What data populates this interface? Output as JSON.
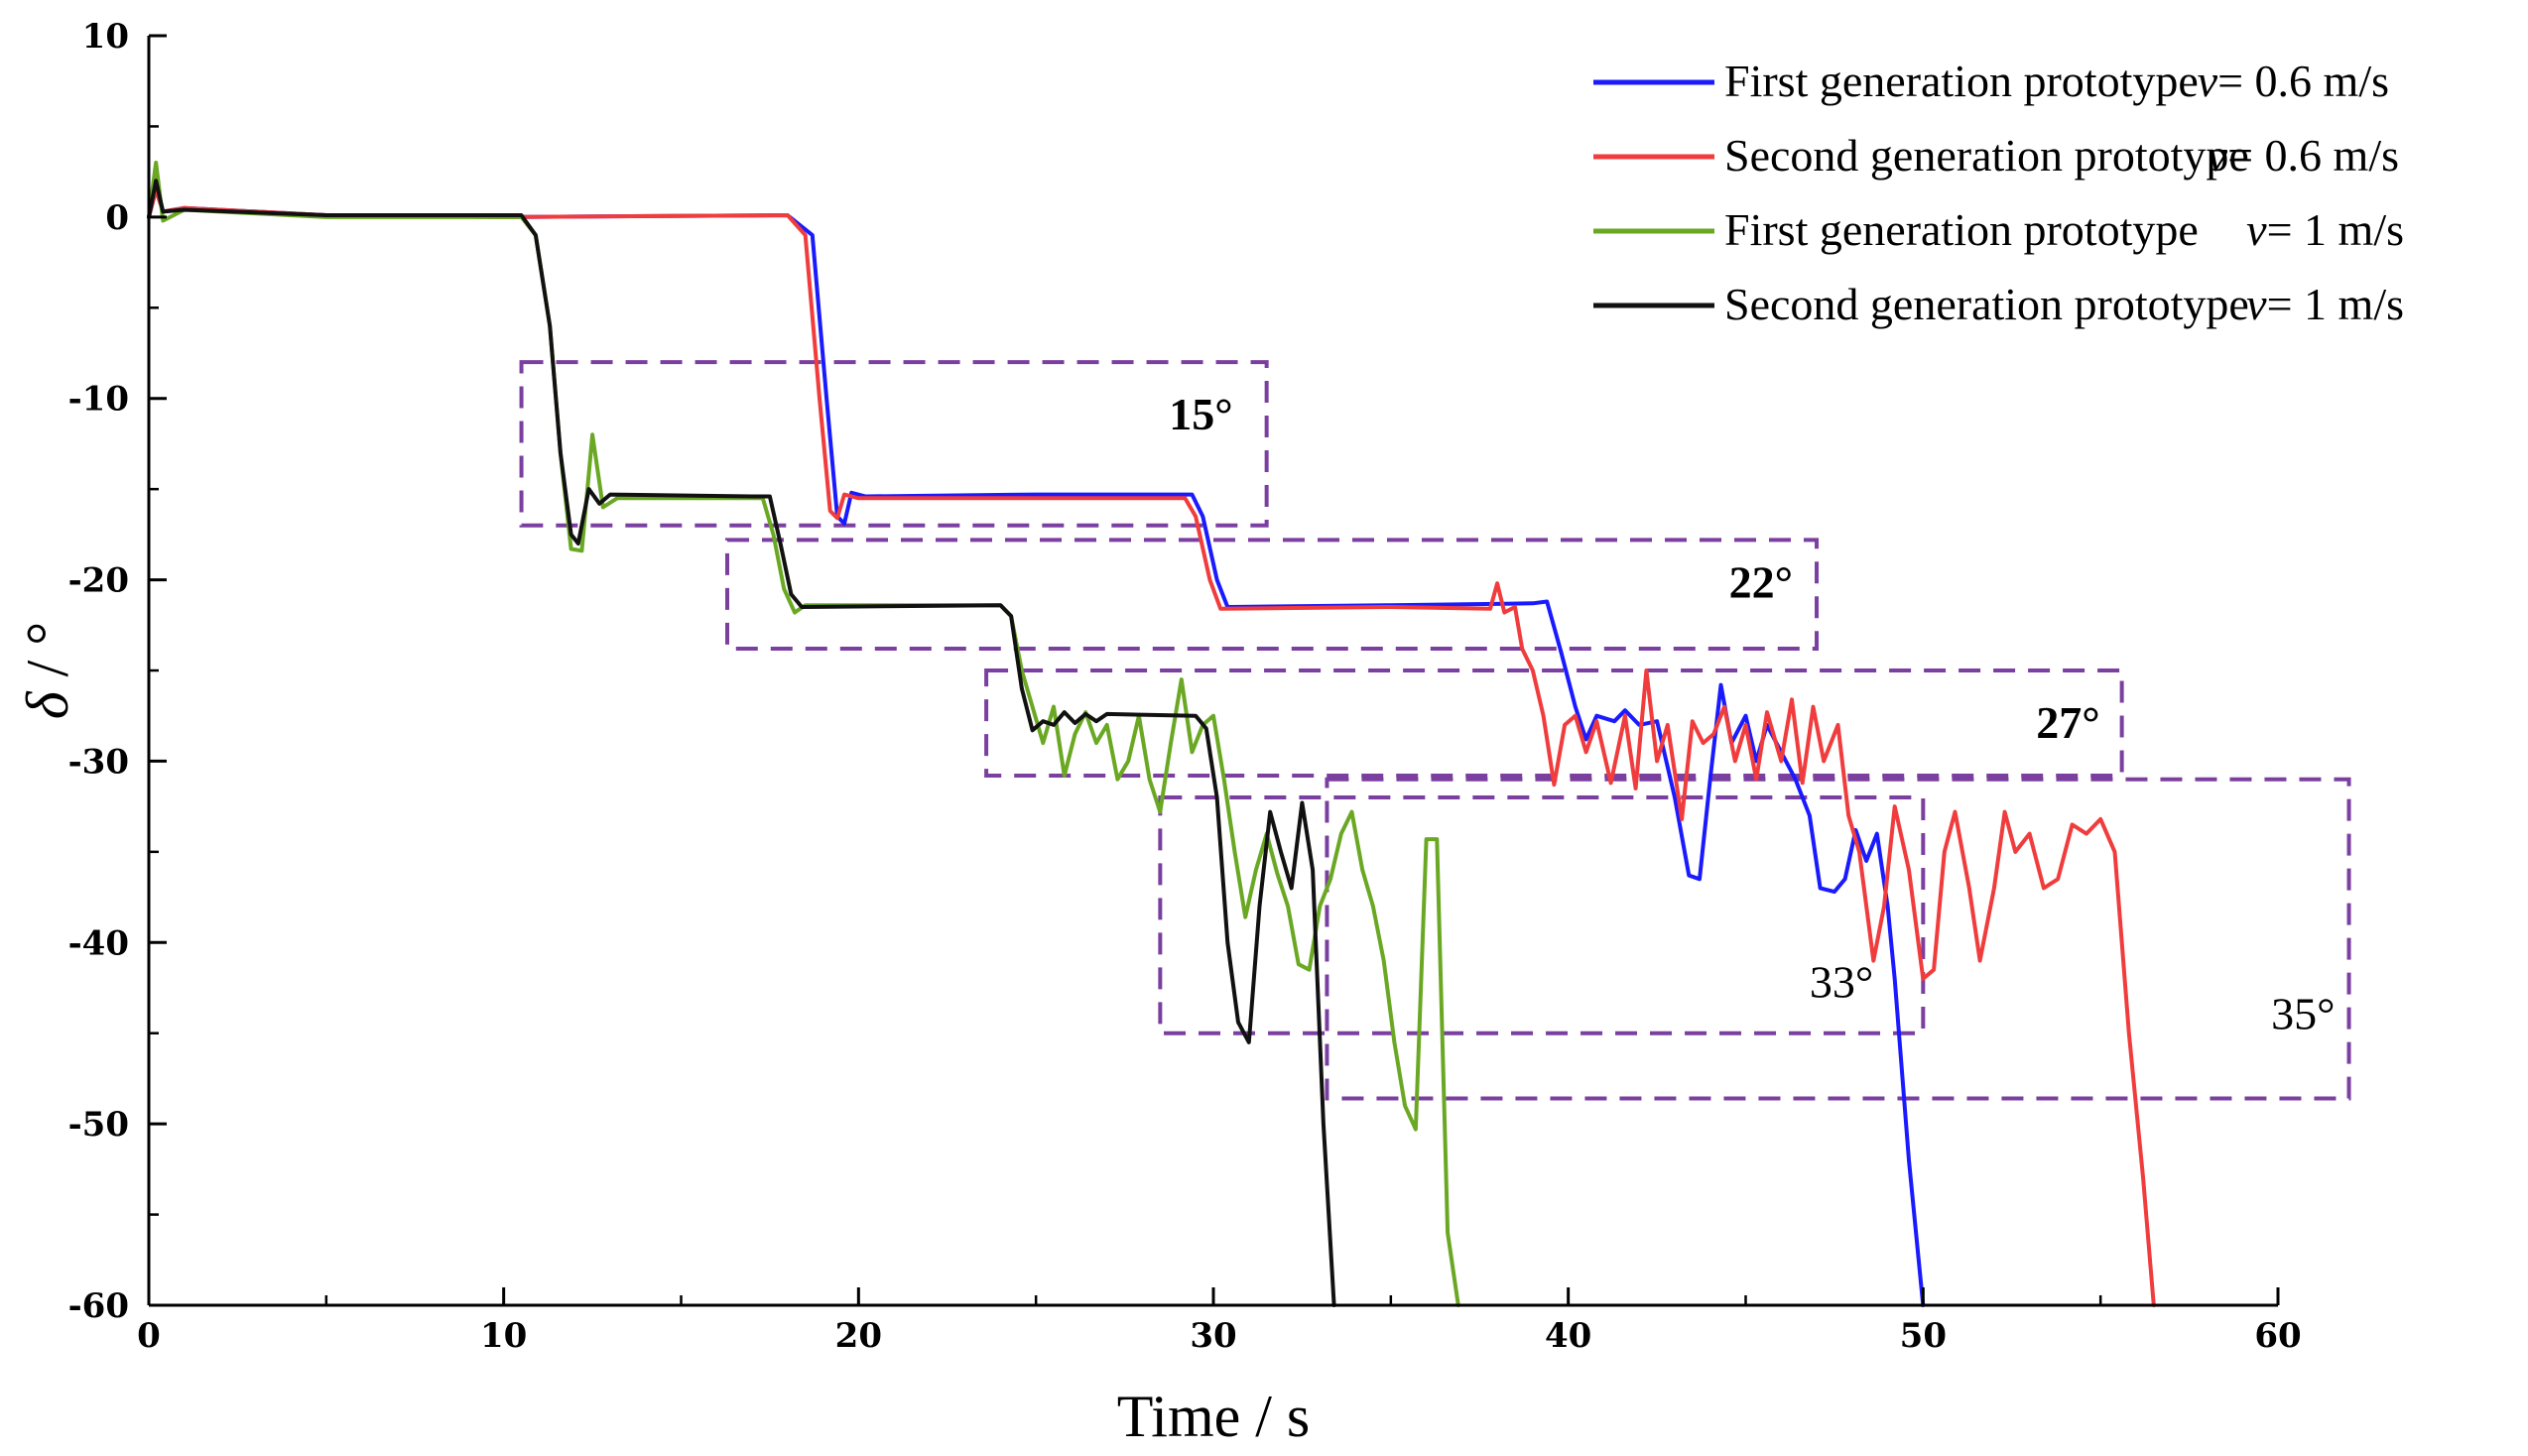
{
  "chart_data": {
    "type": "line",
    "xlabel": "Time / s",
    "ylabel_symbol": "δ",
    "ylabel_unit": " / °",
    "xlim": [
      0,
      60
    ],
    "ylim": [
      -60,
      10
    ],
    "x_ticks": [
      0,
      10,
      20,
      30,
      40,
      50,
      60
    ],
    "y_ticks": [
      10,
      0,
      -10,
      -20,
      -30,
      -40,
      -50,
      -60
    ],
    "y_tick_labels": [
      "10",
      "0",
      "-10",
      "-20",
      "-30",
      "-40",
      "-50",
      "-60"
    ],
    "grid": false,
    "legend_position": "top-right",
    "series": [
      {
        "name": "First generation prototype",
        "speed_label": "v",
        "speed_value": "= 0.6 m/s",
        "color": "#1a1aff",
        "points": [
          [
            0,
            0
          ],
          [
            0.2,
            1.5
          ],
          [
            0.4,
            0.3
          ],
          [
            1,
            0.5
          ],
          [
            5,
            0.1
          ],
          [
            10,
            0
          ],
          [
            18,
            0.1
          ],
          [
            18.7,
            -1
          ],
          [
            19.1,
            -10
          ],
          [
            19.4,
            -16.5
          ],
          [
            19.6,
            -16.9
          ],
          [
            19.8,
            -15.2
          ],
          [
            20.2,
            -15.4
          ],
          [
            25,
            -15.3
          ],
          [
            29.4,
            -15.3
          ],
          [
            29.7,
            -16.5
          ],
          [
            30.1,
            -20
          ],
          [
            30.4,
            -21.5
          ],
          [
            35,
            -21.4
          ],
          [
            39,
            -21.3
          ],
          [
            39.4,
            -21.2
          ],
          [
            39.8,
            -24
          ],
          [
            40.2,
            -27
          ],
          [
            40.5,
            -28.8
          ],
          [
            40.8,
            -27.5
          ],
          [
            41.3,
            -27.8
          ],
          [
            41.6,
            -27.2
          ],
          [
            42,
            -28
          ],
          [
            42.5,
            -27.8
          ],
          [
            43,
            -32
          ],
          [
            43.4,
            -36.3
          ],
          [
            43.7,
            -36.5
          ],
          [
            44,
            -31
          ],
          [
            44.3,
            -25.8
          ],
          [
            44.6,
            -29
          ],
          [
            45,
            -27.5
          ],
          [
            45.3,
            -30
          ],
          [
            45.6,
            -28
          ],
          [
            46,
            -29.5
          ],
          [
            46.4,
            -31
          ],
          [
            46.8,
            -33
          ],
          [
            47.1,
            -37
          ],
          [
            47.5,
            -37.2
          ],
          [
            47.8,
            -36.5
          ],
          [
            48.1,
            -33.8
          ],
          [
            48.4,
            -35.5
          ],
          [
            48.7,
            -34
          ],
          [
            49,
            -38
          ],
          [
            49.2,
            -42
          ],
          [
            49.6,
            -52
          ],
          [
            50,
            -60
          ]
        ]
      },
      {
        "name": "Second generation prototype",
        "speed_label": "v",
        "speed_value": "= 0.6 m/s",
        "color": "#f03c3c",
        "points": [
          [
            0,
            0
          ],
          [
            0.2,
            1.5
          ],
          [
            0.4,
            0.3
          ],
          [
            1,
            0.5
          ],
          [
            5,
            0.1
          ],
          [
            10,
            0
          ],
          [
            18,
            0.1
          ],
          [
            18.5,
            -1
          ],
          [
            18.9,
            -10
          ],
          [
            19.2,
            -16.2
          ],
          [
            19.4,
            -16.6
          ],
          [
            19.6,
            -15.3
          ],
          [
            20,
            -15.5
          ],
          [
            25,
            -15.5
          ],
          [
            29.2,
            -15.5
          ],
          [
            29.5,
            -16.5
          ],
          [
            29.9,
            -20
          ],
          [
            30.2,
            -21.6
          ],
          [
            35,
            -21.5
          ],
          [
            37.8,
            -21.6
          ],
          [
            38,
            -20.2
          ],
          [
            38.2,
            -21.8
          ],
          [
            38.5,
            -21.5
          ],
          [
            38.7,
            -23.8
          ],
          [
            39,
            -25
          ],
          [
            39.3,
            -27.5
          ],
          [
            39.6,
            -31.3
          ],
          [
            39.9,
            -28
          ],
          [
            40.2,
            -27.5
          ],
          [
            40.5,
            -29.5
          ],
          [
            40.8,
            -27.8
          ],
          [
            41.2,
            -31.2
          ],
          [
            41.6,
            -27.5
          ],
          [
            41.9,
            -31.5
          ],
          [
            42.2,
            -25
          ],
          [
            42.5,
            -30
          ],
          [
            42.8,
            -28
          ],
          [
            43.2,
            -33.2
          ],
          [
            43.5,
            -27.8
          ],
          [
            43.8,
            -29
          ],
          [
            44.1,
            -28.5
          ],
          [
            44.4,
            -27
          ],
          [
            44.7,
            -30
          ],
          [
            45,
            -28
          ],
          [
            45.3,
            -31
          ],
          [
            45.6,
            -27.3
          ],
          [
            46,
            -30
          ],
          [
            46.3,
            -26.6
          ],
          [
            46.6,
            -31.2
          ],
          [
            46.9,
            -27
          ],
          [
            47.2,
            -30
          ],
          [
            47.6,
            -28
          ],
          [
            47.9,
            -33
          ],
          [
            48.2,
            -35
          ],
          [
            48.6,
            -41
          ],
          [
            48.9,
            -38
          ],
          [
            49.2,
            -32.5
          ],
          [
            49.6,
            -36
          ],
          [
            50,
            -42
          ],
          [
            50.3,
            -41.5
          ],
          [
            50.6,
            -35
          ],
          [
            50.9,
            -32.8
          ],
          [
            51.3,
            -37
          ],
          [
            51.6,
            -41
          ],
          [
            52,
            -37
          ],
          [
            52.3,
            -32.8
          ],
          [
            52.6,
            -35
          ],
          [
            53,
            -34
          ],
          [
            53.4,
            -37
          ],
          [
            53.8,
            -36.5
          ],
          [
            54.2,
            -33.5
          ],
          [
            54.6,
            -34
          ],
          [
            55,
            -33.2
          ],
          [
            55.4,
            -35
          ],
          [
            55.8,
            -45
          ],
          [
            56.2,
            -53
          ],
          [
            56.5,
            -60
          ]
        ]
      },
      {
        "name": "First generation prototype",
        "speed_label": "v",
        "speed_value": "= 1 m/s",
        "color": "#6aa824",
        "points": [
          [
            0,
            0
          ],
          [
            0.2,
            3
          ],
          [
            0.4,
            -0.2
          ],
          [
            1,
            0.4
          ],
          [
            5,
            0
          ],
          [
            10.5,
            0
          ],
          [
            10.9,
            -1
          ],
          [
            11.3,
            -6
          ],
          [
            11.6,
            -13
          ],
          [
            11.9,
            -18.3
          ],
          [
            12.2,
            -18.4
          ],
          [
            12.5,
            -12
          ],
          [
            12.8,
            -16
          ],
          [
            13.2,
            -15.5
          ],
          [
            17,
            -15.5
          ],
          [
            17.3,
            -15.5
          ],
          [
            17.6,
            -17.5
          ],
          [
            17.9,
            -20.5
          ],
          [
            18.2,
            -21.8
          ],
          [
            18.5,
            -21.4
          ],
          [
            24,
            -21.4
          ],
          [
            24.3,
            -22
          ],
          [
            24.6,
            -25
          ],
          [
            24.9,
            -27
          ],
          [
            25.2,
            -29
          ],
          [
            25.5,
            -27
          ],
          [
            25.8,
            -30.8
          ],
          [
            26.1,
            -28.5
          ],
          [
            26.4,
            -27.3
          ],
          [
            26.7,
            -29
          ],
          [
            27,
            -28
          ],
          [
            27.3,
            -31
          ],
          [
            27.6,
            -30
          ],
          [
            27.9,
            -27.5
          ],
          [
            28.2,
            -31
          ],
          [
            28.5,
            -32.8
          ],
          [
            28.8,
            -29
          ],
          [
            29.1,
            -25.5
          ],
          [
            29.4,
            -29.5
          ],
          [
            29.7,
            -28
          ],
          [
            30,
            -27.5
          ],
          [
            30.3,
            -31
          ],
          [
            30.6,
            -35
          ],
          [
            30.9,
            -38.6
          ],
          [
            31.2,
            -36
          ],
          [
            31.5,
            -34
          ],
          [
            31.8,
            -36.2
          ],
          [
            32.1,
            -38
          ],
          [
            32.4,
            -41.2
          ],
          [
            32.7,
            -41.5
          ],
          [
            33,
            -38
          ],
          [
            33.3,
            -36.5
          ],
          [
            33.6,
            -34
          ],
          [
            33.9,
            -32.8
          ],
          [
            34.2,
            -36
          ],
          [
            34.5,
            -38
          ],
          [
            34.8,
            -41
          ],
          [
            35.1,
            -45.5
          ],
          [
            35.4,
            -49
          ],
          [
            35.7,
            -50.3
          ],
          [
            36,
            -34.3
          ],
          [
            36.3,
            -34.3
          ],
          [
            36.6,
            -56
          ],
          [
            36.9,
            -60
          ]
        ]
      },
      {
        "name": "Second generation prototype",
        "speed_label": "v",
        "speed_value": "= 1 m/s",
        "color": "#111111",
        "points": [
          [
            0,
            0
          ],
          [
            0.2,
            2
          ],
          [
            0.4,
            0.3
          ],
          [
            1,
            0.4
          ],
          [
            5,
            0.1
          ],
          [
            10.5,
            0.1
          ],
          [
            10.9,
            -1
          ],
          [
            11.3,
            -6
          ],
          [
            11.6,
            -13
          ],
          [
            11.9,
            -17.5
          ],
          [
            12.1,
            -18
          ],
          [
            12.4,
            -15
          ],
          [
            12.7,
            -15.8
          ],
          [
            13,
            -15.3
          ],
          [
            17,
            -15.4
          ],
          [
            17.5,
            -15.4
          ],
          [
            17.8,
            -18
          ],
          [
            18.1,
            -20.8
          ],
          [
            18.4,
            -21.5
          ],
          [
            24,
            -21.4
          ],
          [
            24.3,
            -22
          ],
          [
            24.6,
            -26
          ],
          [
            24.9,
            -28.3
          ],
          [
            25.2,
            -27.8
          ],
          [
            25.5,
            -28
          ],
          [
            25.8,
            -27.3
          ],
          [
            26.1,
            -27.9
          ],
          [
            26.4,
            -27.4
          ],
          [
            26.7,
            -27.8
          ],
          [
            27,
            -27.4
          ],
          [
            29.5,
            -27.5
          ],
          [
            29.8,
            -28.2
          ],
          [
            30.1,
            -32
          ],
          [
            30.4,
            -40
          ],
          [
            30.7,
            -44.4
          ],
          [
            31,
            -45.5
          ],
          [
            31.3,
            -38
          ],
          [
            31.6,
            -32.8
          ],
          [
            31.9,
            -35
          ],
          [
            32.2,
            -37
          ],
          [
            32.5,
            -32.3
          ],
          [
            32.8,
            -36
          ],
          [
            33.1,
            -50
          ],
          [
            33.4,
            -60
          ]
        ]
      }
    ],
    "annotations": [
      "15°",
      "22°",
      "27°",
      "33°",
      "35°"
    ],
    "annotation_boxes": [
      {
        "label": "15°",
        "x": [
          10.5,
          31.5
        ],
        "y": [
          -17,
          -8
        ]
      },
      {
        "label": "22°",
        "x": [
          16.3,
          47
        ],
        "y": [
          -23.8,
          -17.8
        ]
      },
      {
        "label": "27°",
        "x": [
          23.6,
          55.6
        ],
        "y": [
          -30.8,
          -25
        ]
      },
      {
        "label": "33°",
        "x": [
          28.5,
          50
        ],
        "y": [
          -45,
          -32
        ]
      },
      {
        "label": "35°",
        "x": [
          33.2,
          62
        ],
        "y": [
          -48.6,
          -31
        ]
      }
    ],
    "annotation_box_color": "#7b3fa0"
  }
}
